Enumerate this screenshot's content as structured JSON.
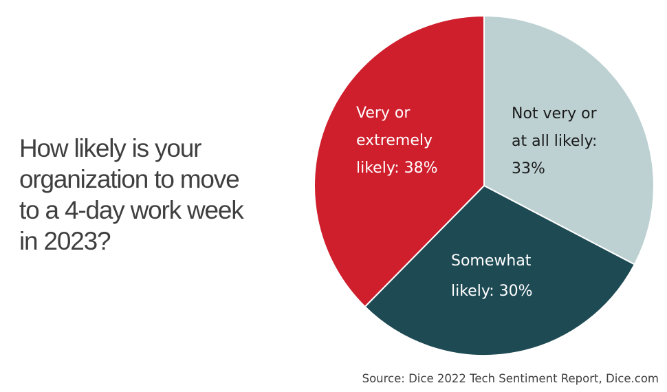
{
  "question": {
    "lines": [
      "How likely is your",
      "organization to move",
      "to a 4-day work week",
      "in 2023?"
    ]
  },
  "chart_data": {
    "type": "pie",
    "slices": [
      {
        "label_lines": [
          "Not very or",
          "at all likely:",
          "33%"
        ],
        "category": "Not very or at all likely",
        "value": 33,
        "color": "#bdd1d3",
        "text_color": "#1a1a1a"
      },
      {
        "label_lines": [
          "Somewhat",
          "likely: 30%"
        ],
        "category": "Somewhat likely",
        "value": 30,
        "color": "#1e4a54",
        "text_color": "#ffffff"
      },
      {
        "label_lines": [
          "Very or",
          "extremely",
          "likely: 38%"
        ],
        "category": "Very or extremely likely",
        "value": 38,
        "color": "#cf1f2d",
        "text_color": "#ffffff"
      }
    ],
    "start": "12 o'clock",
    "direction": "clockwise",
    "stroke_color": "#ffffff"
  },
  "source": "Source: Dice 2022 Tech Sentiment Report, Dice.com"
}
